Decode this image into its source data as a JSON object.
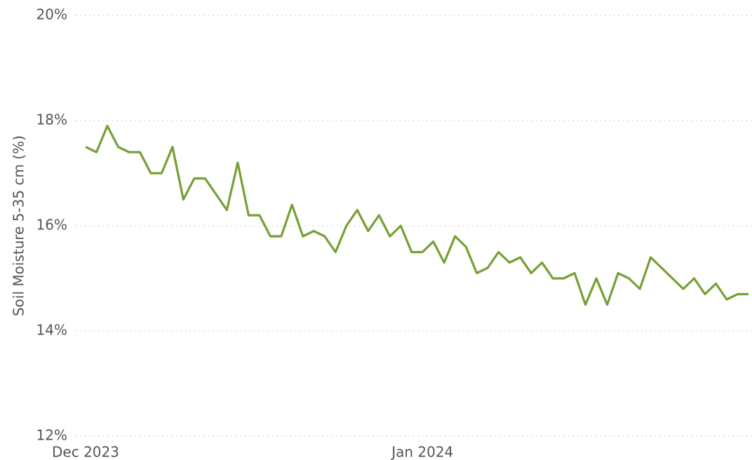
{
  "chart_data": {
    "type": "line",
    "y_label": "Soil Moisture 5-35 cm (%)",
    "categories": [
      "Dec 2023",
      null,
      null,
      null,
      null,
      null,
      null,
      null,
      null,
      null,
      null,
      null,
      null,
      null,
      null,
      null,
      null,
      null,
      null,
      null,
      null,
      null,
      null,
      null,
      null,
      null,
      null,
      null,
      null,
      null,
      null,
      "Jan 2024",
      null,
      null,
      null,
      null,
      null,
      null,
      null,
      null,
      null,
      null,
      null,
      null,
      null,
      null,
      null,
      null,
      null,
      null,
      null,
      null,
      null,
      null,
      null,
      null,
      null,
      null,
      null,
      null,
      null,
      null
    ],
    "values": [
      17.5,
      17.4,
      17.9,
      17.5,
      17.4,
      17.4,
      17.0,
      17.0,
      17.5,
      16.5,
      16.9,
      16.9,
      16.6,
      16.3,
      17.2,
      16.2,
      16.2,
      15.8,
      15.8,
      16.4,
      15.8,
      15.9,
      15.8,
      15.5,
      16.0,
      16.3,
      15.9,
      16.2,
      15.8,
      16.0,
      15.5,
      15.5,
      15.7,
      15.3,
      15.8,
      15.6,
      15.1,
      15.2,
      15.5,
      15.3,
      15.4,
      15.1,
      15.3,
      15.0,
      15.0,
      15.1,
      14.5,
      15.0,
      14.5,
      15.1,
      15.0,
      14.8,
      15.4,
      15.2,
      15.0,
      14.8,
      15.0,
      14.7,
      14.9,
      14.6,
      14.7,
      14.7
    ],
    "color": "#76a035",
    "ylim": [
      12,
      20
    ],
    "yticks": [
      {
        "value": 12,
        "label": "12%"
      },
      {
        "value": 14,
        "label": "14%"
      },
      {
        "value": 16,
        "label": "16%"
      },
      {
        "value": 18,
        "label": "18%"
      },
      {
        "value": 20,
        "label": "20%"
      }
    ],
    "grid": true
  }
}
